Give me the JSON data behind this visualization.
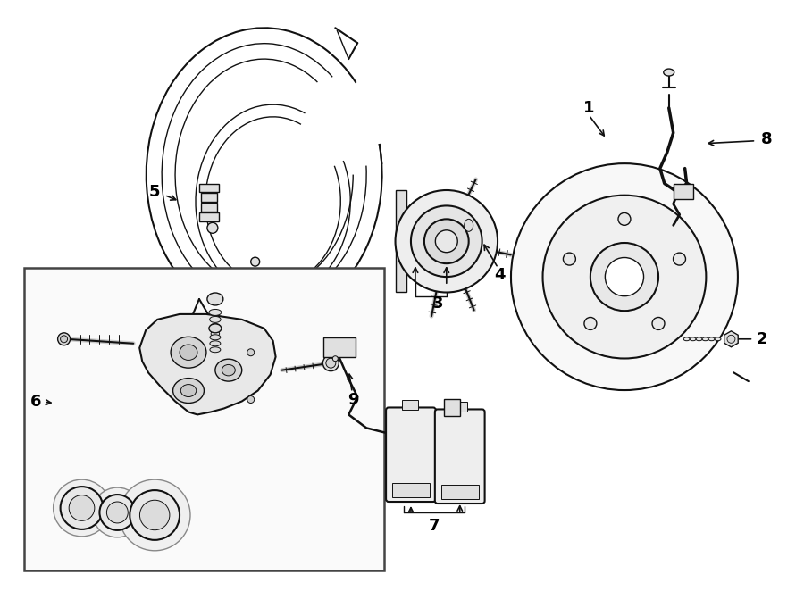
{
  "bg_color": "#ffffff",
  "line_color": "#111111",
  "label_color": "#000000",
  "fig_width": 9.0,
  "fig_height": 6.62,
  "dpi": 100
}
